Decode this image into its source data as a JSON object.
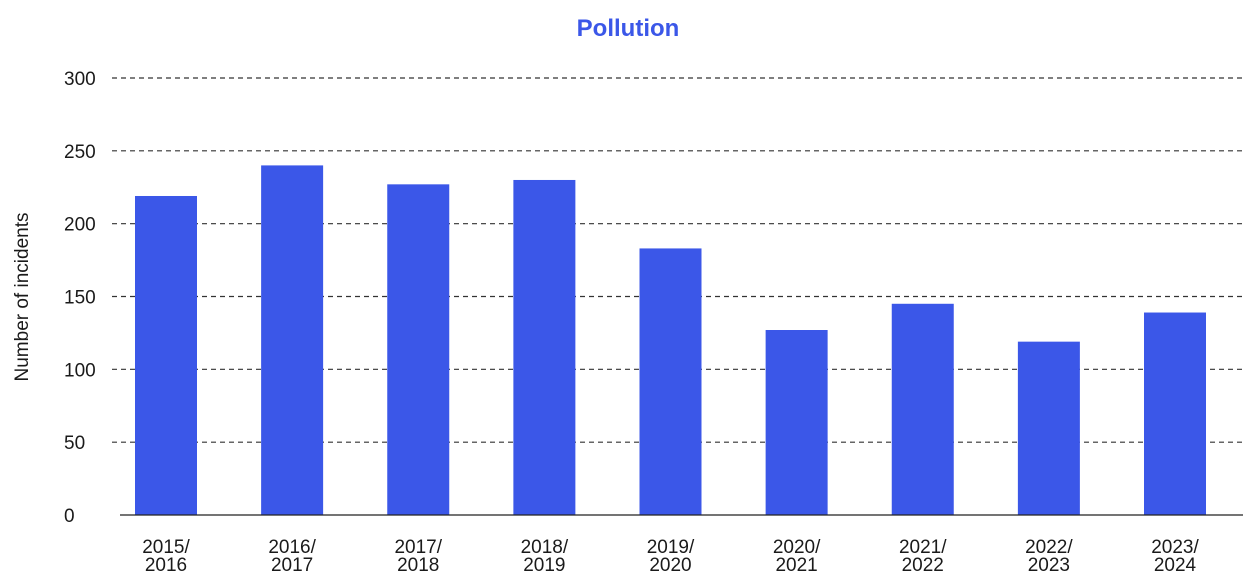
{
  "chart_data": {
    "type": "bar",
    "title": "Pollution",
    "xlabel": "",
    "ylabel": "Number of incidents",
    "categories": [
      [
        "2015/",
        "2016"
      ],
      [
        "2016/",
        "2017"
      ],
      [
        "2017/",
        "2018"
      ],
      [
        "2018/",
        "2019"
      ],
      [
        "2019/",
        "2020"
      ],
      [
        "2020/",
        "2021"
      ],
      [
        "2021/",
        "2022"
      ],
      [
        "2022/",
        "2023"
      ],
      [
        "2023/",
        "2024"
      ]
    ],
    "values": [
      219,
      240,
      227,
      230,
      183,
      127,
      145,
      119,
      139
    ],
    "ylim": [
      0,
      300
    ],
    "yticks": [
      0,
      50,
      100,
      150,
      200,
      250,
      300
    ],
    "grid": "horizontal dashed",
    "legend": "none",
    "colors": {
      "bar": "#3b57e8",
      "title": "#3b57e8",
      "grid": "#333333",
      "axis": "#222222"
    }
  }
}
